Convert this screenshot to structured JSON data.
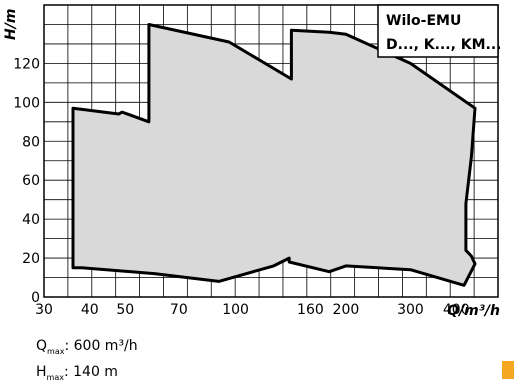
{
  "chart_data": {
    "type": "area",
    "title": "",
    "xlabel": "Q/m³/h",
    "ylabel": "H/m",
    "x_scale": "log",
    "xlim": [
      30,
      520
    ],
    "ylim": [
      0,
      150
    ],
    "grid": true,
    "x_ticks": [
      {
        "value": 30,
        "label": "30"
      },
      {
        "value": 40,
        "label": "40"
      },
      {
        "value": 50,
        "label": "50"
      },
      {
        "value": 70,
        "label": "70"
      },
      {
        "value": 100,
        "label": "100"
      },
      {
        "value": 160,
        "label": "160"
      },
      {
        "value": 200,
        "label": "200"
      },
      {
        "value": 300,
        "label": "300"
      },
      {
        "value": 400,
        "label": "400"
      }
    ],
    "y_ticks": [
      {
        "value": 0,
        "label": "0"
      },
      {
        "value": 20,
        "label": "20"
      },
      {
        "value": 40,
        "label": "40"
      },
      {
        "value": 60,
        "label": "60"
      },
      {
        "value": 80,
        "label": "80"
      },
      {
        "value": 100,
        "label": "100"
      },
      {
        "value": 120,
        "label": "120"
      }
    ],
    "envelope": {
      "x": [
        36,
        36,
        48,
        49,
        58,
        58,
        96,
        142,
        142,
        180,
        200,
        300,
        450,
        440,
        425,
        425,
        425,
        440,
        450,
        420,
        300,
        200,
        180,
        140,
        140,
        127,
        90,
        60,
        38,
        36
      ],
      "y": [
        15,
        97,
        94,
        95,
        90,
        140,
        131,
        112,
        137,
        136,
        135,
        120,
        97,
        72,
        48,
        44,
        24,
        21,
        17,
        6,
        14,
        16,
        13,
        18,
        20,
        16,
        8,
        12,
        15,
        15
      ]
    },
    "legend_box": [
      "Wilo-EMU",
      "D..., K..., KM..."
    ],
    "fill_color": "#d9d9d9",
    "line_color": "#000000"
  },
  "specs": {
    "q_label": "Q",
    "q_sub": "max",
    "q_value": ": 600 m³/h",
    "h_label": "H",
    "h_sub": "max",
    "h_value": ": 140 m"
  },
  "accent_color": "#f5a623"
}
